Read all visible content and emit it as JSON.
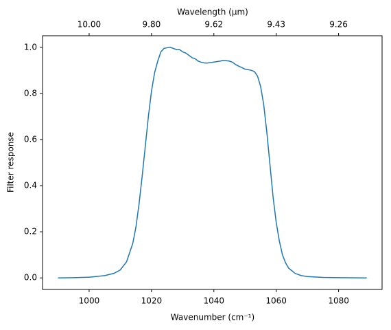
{
  "chart_data": {
    "type": "line",
    "x_label": "Wavenumber (cm⁻¹)",
    "y_label": "Filter response",
    "x2_label": "Wavelength (μm)",
    "xlim": [
      985.05,
      1093.95
    ],
    "ylim": [
      -0.05,
      1.05
    ],
    "xticks": [
      1000,
      1020,
      1040,
      1060,
      1080
    ],
    "x2ticks": [
      {
        "value": 1000,
        "label": "10.00"
      },
      {
        "value": 1020,
        "label": "9.80"
      },
      {
        "value": 1040,
        "label": "9.62"
      },
      {
        "value": 1060,
        "label": "9.43"
      },
      {
        "value": 1080,
        "label": "9.26"
      }
    ],
    "yticks": [
      {
        "value": 0,
        "label": "0.0"
      },
      {
        "value": 0.2,
        "label": "0.2"
      },
      {
        "value": 0.4,
        "label": "0.4"
      },
      {
        "value": 0.6,
        "label": "0.6"
      },
      {
        "value": 0.8,
        "label": "0.8"
      },
      {
        "value": 1,
        "label": "1.0"
      }
    ],
    "color": "#1f77b4",
    "x": [
      990,
      995,
      1000,
      1005,
      1008,
      1010,
      1012,
      1014,
      1015,
      1016,
      1017,
      1018,
      1019,
      1020,
      1021,
      1022,
      1023,
      1024,
      1025,
      1026,
      1027,
      1028,
      1029,
      1030,
      1031,
      1032,
      1033,
      1034,
      1035,
      1036,
      1037,
      1038,
      1040,
      1042,
      1043,
      1044,
      1045,
      1046,
      1047,
      1048,
      1049,
      1050,
      1051,
      1052,
      1053,
      1054,
      1055,
      1056,
      1057,
      1058,
      1059,
      1060,
      1061,
      1062,
      1063,
      1064,
      1066,
      1068,
      1070,
      1075,
      1080,
      1089
    ],
    "values": [
      0,
      0.001,
      0.003,
      0.01,
      0.02,
      0.035,
      0.07,
      0.15,
      0.22,
      0.32,
      0.44,
      0.57,
      0.7,
      0.81,
      0.89,
      0.94,
      0.98,
      0.995,
      0.998,
      1.0,
      0.995,
      0.99,
      0.99,
      0.98,
      0.975,
      0.965,
      0.955,
      0.95,
      0.94,
      0.935,
      0.932,
      0.932,
      0.936,
      0.94,
      0.943,
      0.942,
      0.94,
      0.935,
      0.925,
      0.918,
      0.912,
      0.905,
      0.903,
      0.9,
      0.895,
      0.875,
      0.83,
      0.75,
      0.63,
      0.49,
      0.35,
      0.24,
      0.16,
      0.1,
      0.065,
      0.042,
      0.02,
      0.01,
      0.006,
      0.002,
      0.001,
      0
    ]
  }
}
